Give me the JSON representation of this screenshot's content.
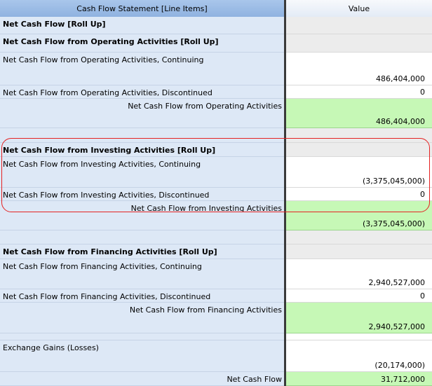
{
  "header": {
    "line_items_label": "Cash Flow Statement [Line Items]",
    "value_label": "Value"
  },
  "rows": [
    {
      "label": "Net Cash Flow [Roll Up]",
      "value": ""
    },
    {
      "label": "Net Cash Flow from Operating Activities [Roll Up]",
      "value": ""
    },
    {
      "label": "Net Cash Flow from Operating Activities, Continuing",
      "value": "486,404,000"
    },
    {
      "label": "Net Cash Flow from Operating Activities, Discontinued",
      "value": "0"
    },
    {
      "label": "Net Cash Flow from Operating Activities",
      "value": "486,404,000"
    },
    {
      "label": "Net Cash Flow from Investing Activities [Roll Up]",
      "value": ""
    },
    {
      "label": "Net Cash Flow from Investing Activities, Continuing",
      "value": "(3,375,045,000)"
    },
    {
      "label": "Net Cash Flow from Investing Activities, Discontinued",
      "value": "0"
    },
    {
      "label": "Net Cash Flow from Investing Activities",
      "value": "(3,375,045,000)"
    },
    {
      "label": "Net Cash Flow from Financing Activities [Roll Up]",
      "value": ""
    },
    {
      "label": "Net Cash Flow from Financing Activities, Continuing",
      "value": "2,940,527,000"
    },
    {
      "label": "Net Cash Flow from Financing Activities, Discontinued",
      "value": "0"
    },
    {
      "label": "Net Cash Flow from Financing Activities",
      "value": "2,940,527,000"
    },
    {
      "label": "Exchange Gains (Losses)",
      "value": "(20,174,000)"
    },
    {
      "label": "Net Cash Flow",
      "value": "31,712,000"
    }
  ],
  "colors": {
    "header_left": "#9bbbe5",
    "label_bg": "#dde8f6",
    "total_bg": "#c6f8b6",
    "rollup_value_bg": "#ececec",
    "highlight_outline": "#e52222"
  }
}
